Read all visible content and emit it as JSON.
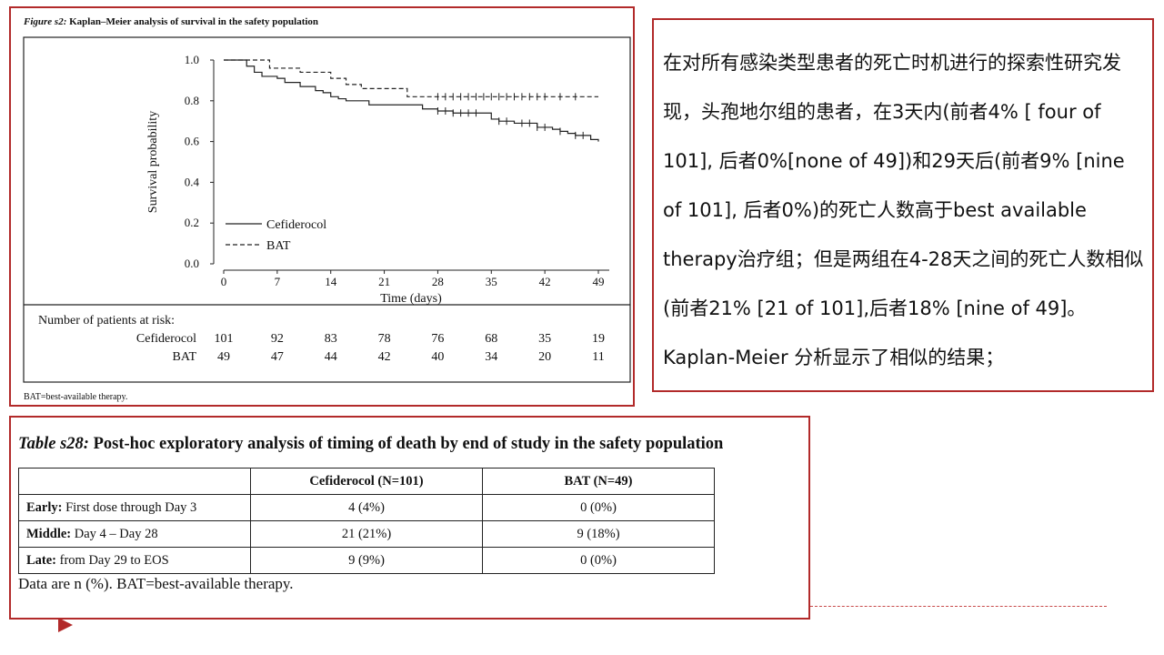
{
  "figure": {
    "title_prefix": "Figure s2:",
    "title_rest": " Kaplan–Meier analysis of survival in the safety population",
    "footnote": "BAT=best-available therapy."
  },
  "chart_data": {
    "type": "line",
    "xlabel": "Time (days)",
    "ylabel": "Survival probability",
    "xlim": [
      0,
      49
    ],
    "ylim": [
      0,
      1
    ],
    "x_ticks": [
      0,
      7,
      14,
      21,
      28,
      35,
      42,
      49
    ],
    "y_ticks": [
      "0.0",
      "0.2",
      "0.4",
      "0.6",
      "0.8",
      "1.0"
    ],
    "legend_position": "bottom-left",
    "series": [
      {
        "name": "Cefiderocol",
        "style": "solid",
        "steps": [
          [
            0,
            1.0
          ],
          [
            3,
            0.97
          ],
          [
            4,
            0.94
          ],
          [
            5,
            0.92
          ],
          [
            7,
            0.91
          ],
          [
            8,
            0.89
          ],
          [
            10,
            0.87
          ],
          [
            12,
            0.85
          ],
          [
            13,
            0.84
          ],
          [
            14,
            0.82
          ],
          [
            15,
            0.81
          ],
          [
            16,
            0.8
          ],
          [
            19,
            0.78
          ],
          [
            23,
            0.78
          ],
          [
            26,
            0.76
          ],
          [
            28,
            0.75
          ],
          [
            30,
            0.74
          ],
          [
            35,
            0.71
          ],
          [
            36,
            0.7
          ],
          [
            38,
            0.69
          ],
          [
            41,
            0.67
          ],
          [
            43,
            0.66
          ],
          [
            44,
            0.65
          ],
          [
            45,
            0.64
          ],
          [
            46,
            0.63
          ],
          [
            48,
            0.61
          ],
          [
            49,
            0.6
          ]
        ],
        "censored": [
          28,
          29,
          30,
          31,
          32,
          33,
          36,
          37,
          39,
          40,
          41,
          42,
          44,
          46,
          47
        ]
      },
      {
        "name": "BAT",
        "style": "dashed",
        "steps": [
          [
            0,
            1.0
          ],
          [
            6,
            0.96
          ],
          [
            10,
            0.94
          ],
          [
            14,
            0.91
          ],
          [
            16,
            0.88
          ],
          [
            18,
            0.86
          ],
          [
            24,
            0.82
          ],
          [
            49,
            0.82
          ]
        ],
        "censored": [
          28,
          29,
          30,
          31,
          32,
          33,
          34,
          35,
          36,
          37,
          38,
          39,
          40,
          41,
          42,
          44,
          46
        ]
      }
    ],
    "risk_table": {
      "header": "Number of patients at risk:",
      "rows": [
        {
          "label": "Cefiderocol",
          "values": [
            "101",
            "92",
            "83",
            "78",
            "76",
            "68",
            "35",
            "19"
          ]
        },
        {
          "label": "BAT",
          "values": [
            "49",
            "47",
            "44",
            "42",
            "40",
            "34",
            "20",
            "11"
          ]
        }
      ]
    }
  },
  "text_panel": {
    "content": "在对所有感染类型患者的死亡时机进行的探索性研究发现，头孢地尔组的患者，在3天内(前者4% [ four of 101], 后者0%[none of 49])和29天后(前者9% [nine of 101], 后者0%)的死亡人数高于best available therapy治疗组；但是两组在4-28天之间的死亡人数相似(前者21% [21 of 101],后者18% [nine of 49]。Kaplan-Meier 分析显示了相似的结果；"
  },
  "table": {
    "title_prefix": "Table s28:",
    "title_rest": " Post-hoc exploratory analysis of timing of death by end of study in the safety population",
    "headers": [
      "",
      "Cefiderocol (N=101)",
      "BAT (N=49)"
    ],
    "rows": [
      {
        "label_bold": "Early:",
        "label_rest": " First dose through Day 3",
        "cefiderocol": "4 (4%)",
        "bat": "0 (0%)"
      },
      {
        "label_bold": "Middle:",
        "label_rest": " Day 4 – Day 28",
        "cefiderocol": "21 (21%)",
        "bat": "9 (18%)"
      },
      {
        "label_bold": "Late:",
        "label_rest": " from Day 29 to EOS",
        "cefiderocol": "9 (9%)",
        "bat": "0 (0%)"
      }
    ],
    "note": "Data are n (%). BAT=best-available therapy."
  },
  "colors": {
    "frame": "#b22a2a",
    "accent": "#c84a4a"
  },
  "icons": {
    "bullet": "triangle-arrow-icon"
  }
}
